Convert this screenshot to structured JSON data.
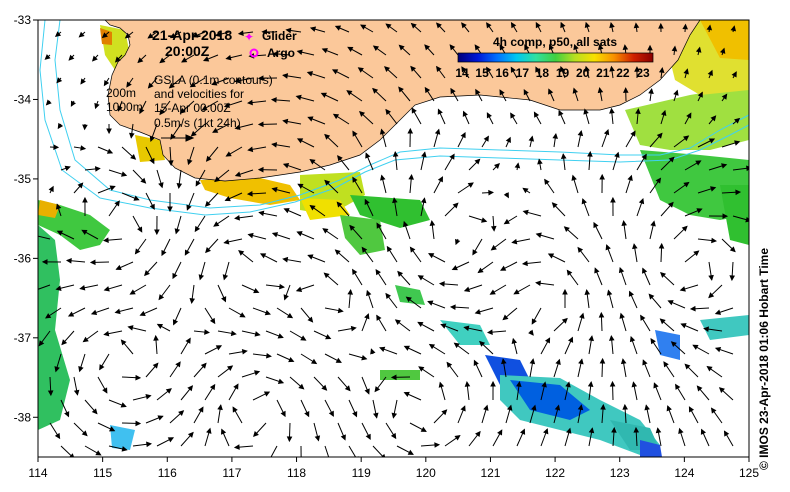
{
  "header": {
    "date": "21-Apr-2018",
    "time": "20:00Z",
    "legend_glider": "Glider",
    "legend_argo": "Argo"
  },
  "annotations": {
    "depth_200": "200m",
    "depth_1000": "1000m",
    "gsla_line1": "GSLA (0.1m contours)",
    "gsla_line2": "and velocities for",
    "gsla_line3": "15-Apr 00:00Z",
    "gsla_line4": "0.5m/s (1kt 24h)"
  },
  "colorbar": {
    "title": "4h comp, p50, all sats",
    "ticks": [
      "14",
      "15",
      "16",
      "17",
      "18",
      "19",
      "20",
      "21",
      "22",
      "23"
    ],
    "colors": [
      "#00007a",
      "#0016d8",
      "#0070ff",
      "#00c8f0",
      "#30e0a0",
      "#40d040",
      "#b8e020",
      "#f8e000",
      "#f89000",
      "#d02000",
      "#8a0000"
    ]
  },
  "credit": "© IMOS 23-Apr-2018 01:06 Hobart Time",
  "colors": {
    "land": "#fbc89a",
    "isobath": "#40d0f0",
    "marker_glider": "#ff00ff",
    "marker_argo": "#ff00ff"
  },
  "chart_data": {
    "type": "map",
    "xlim": [
      114,
      125
    ],
    "ylim": [
      -38.5,
      -33
    ],
    "x_ticks": [
      "114",
      "115",
      "116",
      "117",
      "118",
      "119",
      "120",
      "121",
      "122",
      "123",
      "124",
      "125"
    ],
    "y_ticks": [
      "-33",
      "-34",
      "-35",
      "-36",
      "-37",
      "-38"
    ]
  }
}
